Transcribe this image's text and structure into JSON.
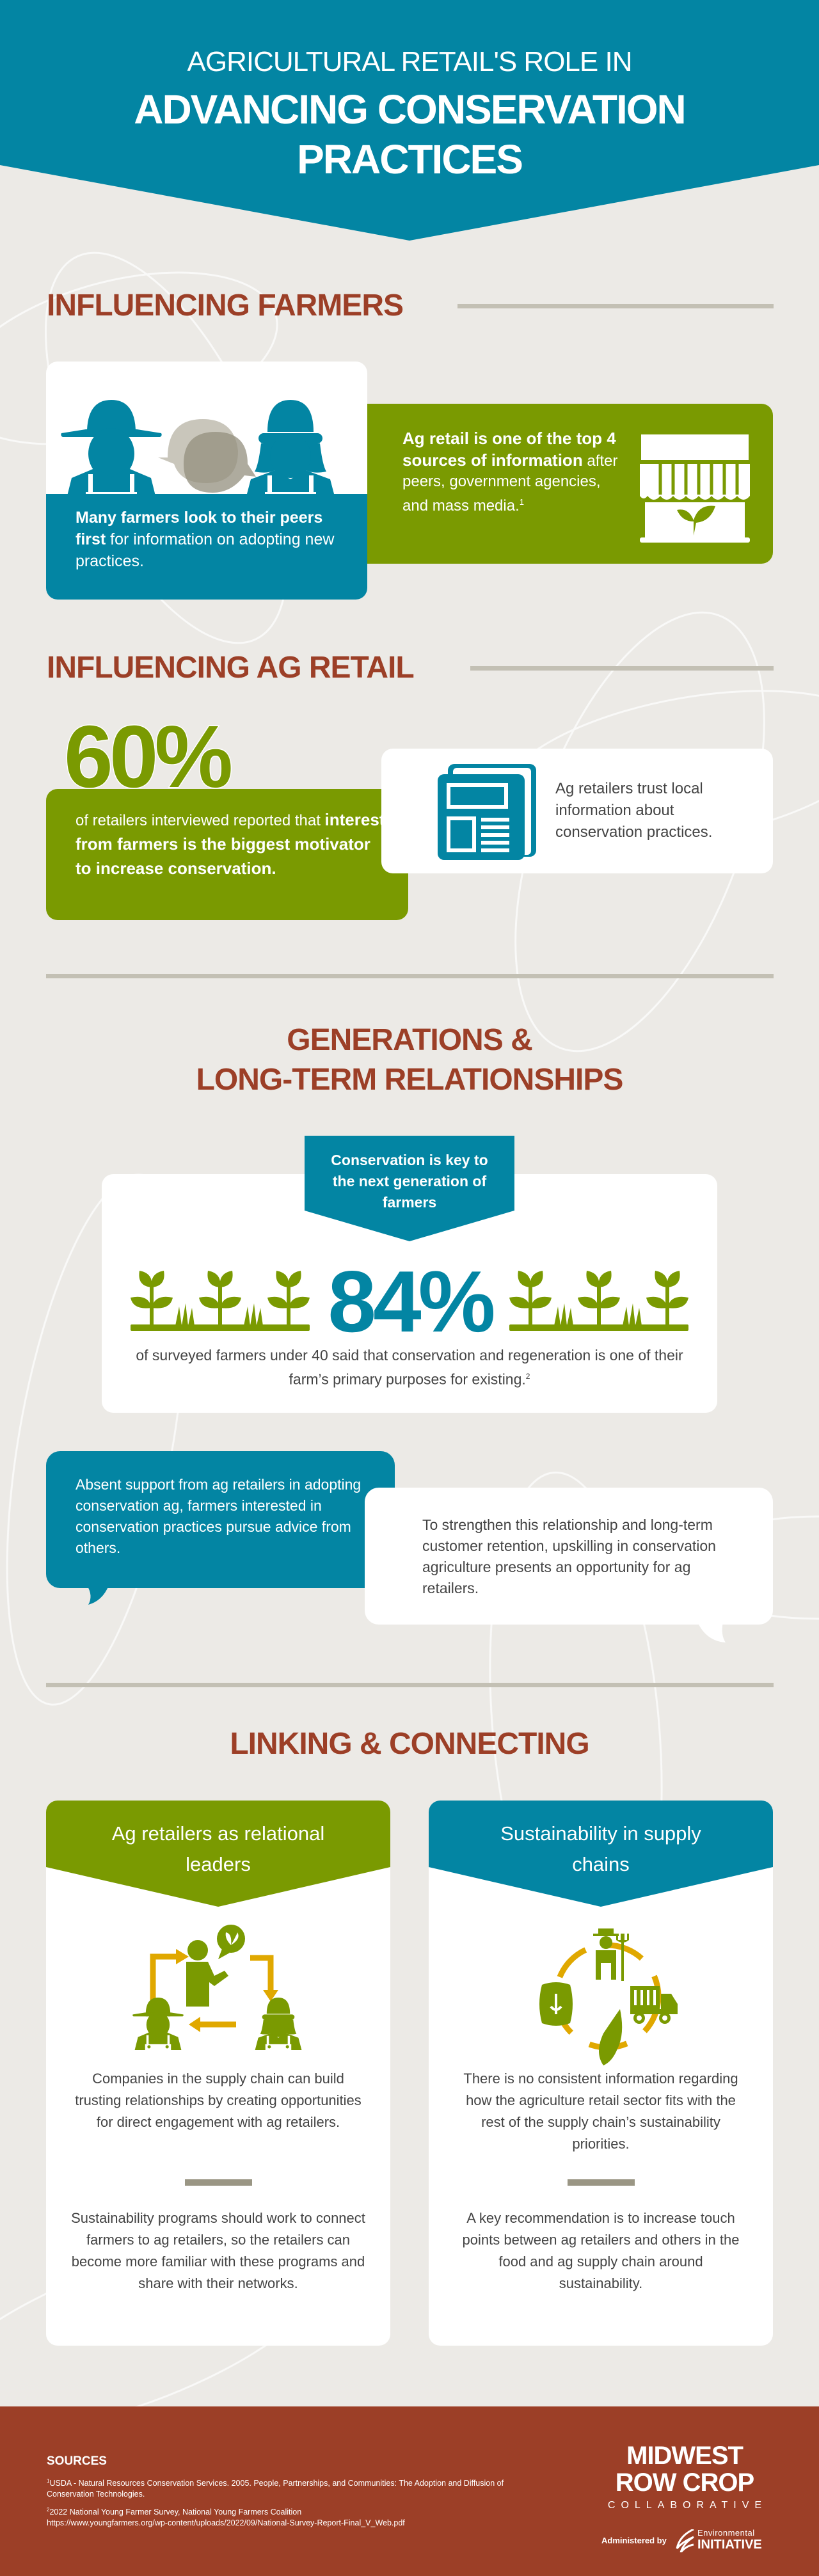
{
  "header": {
    "line1": "AGRICULTURAL RETAIL'S ROLE IN",
    "line2": "ADVANCING CONSERVATION",
    "line3": "PRACTICES"
  },
  "colors": {
    "teal": "#0385A3",
    "green": "#7A9A01",
    "rust": "#9C3F27",
    "background": "#ECEAE6",
    "gold": "#E0A800"
  },
  "influencing_farmers": {
    "heading": "INFLUENCING FARMERS",
    "peers_card": {
      "bold": "Many farmers look to their peers first",
      "text": " for information on adopting new practices.",
      "icon": "farmers-talking-icon"
    },
    "retail_card": {
      "bold": "Ag retail is one of the top 4 sources of information",
      "text": " after peers, government agencies, and mass media.",
      "footnote": "1",
      "icon": "storefront-plant-icon"
    }
  },
  "influencing_ag_retail": {
    "heading": "INFLUENCING AG RETAIL",
    "stat": "60%",
    "stat_text": "of retailers interviewed reported that ",
    "stat_bold": "interest from farmers is the biggest motivator to increase conservation.",
    "trust_text": "Ag retailers trust local information about conservation practices.",
    "icon": "newspaper-icon"
  },
  "generations": {
    "heading_line1": "GENERATIONS &",
    "heading_line2": "LONG-TERM RELATIONSHIPS",
    "banner": "Conservation is key to the next generation of farmers",
    "stat": "84%",
    "stat_text": "of surveyed farmers under 40 said that conservation and regeneration is one of their farm’s primary purposes for existing.",
    "footnote": "2",
    "bubble_left": "Absent support from ag retailers in adopting conservation ag, farmers interested in conservation practices pursue advice from others.",
    "bubble_right": "To strengthen this relationship and long-term customer retention, upskilling in conservation agriculture presents an opportunity for ag retailers."
  },
  "linking": {
    "heading": "LINKING & CONNECTING",
    "cards": [
      {
        "title": "Ag retailers as relational leaders",
        "p1": "Companies in the supply chain can build trusting relationships by creating opportunities for direct engagement with ag retailers.",
        "p2": "Sustainability programs should work to connect farmers to ag retailers, so the retailers can become more familiar with these programs and share with their networks.",
        "icon": "relationship-cycle-icon"
      },
      {
        "title": "Sustainability in supply chains",
        "p1": "There is no consistent information regarding how the agriculture retail sector fits with the rest of the supply chain’s sustainability priorities.",
        "p2": "A key recommendation is to increase touch points between ag retailers and others in the food and ag supply chain around sustainability.",
        "icon": "supply-chain-cycle-icon"
      }
    ]
  },
  "footer": {
    "sources_title": "SOURCES",
    "source1_num": "1",
    "source1": "USDA - Natural Resources Conservation Services. 2005. People, Partnerships, and Communities: The Adoption and Diffusion of Conservation Technologies.",
    "source2_num": "2",
    "source2": "2022 National Young Farmer Survey, National Young Farmers Coalition",
    "source2_url": "https://www.youngfarmers.org/wp-content/uploads/2022/09/National-Survey-Report-Final_V_Web.pdf",
    "logo_line1": "MIDWEST",
    "logo_line2": "ROW CROP",
    "logo_line3": "COLLABORATIVE",
    "administered_by": "Administered by",
    "ei_line1": "Environmental",
    "ei_line2": "INITIATIVE"
  }
}
